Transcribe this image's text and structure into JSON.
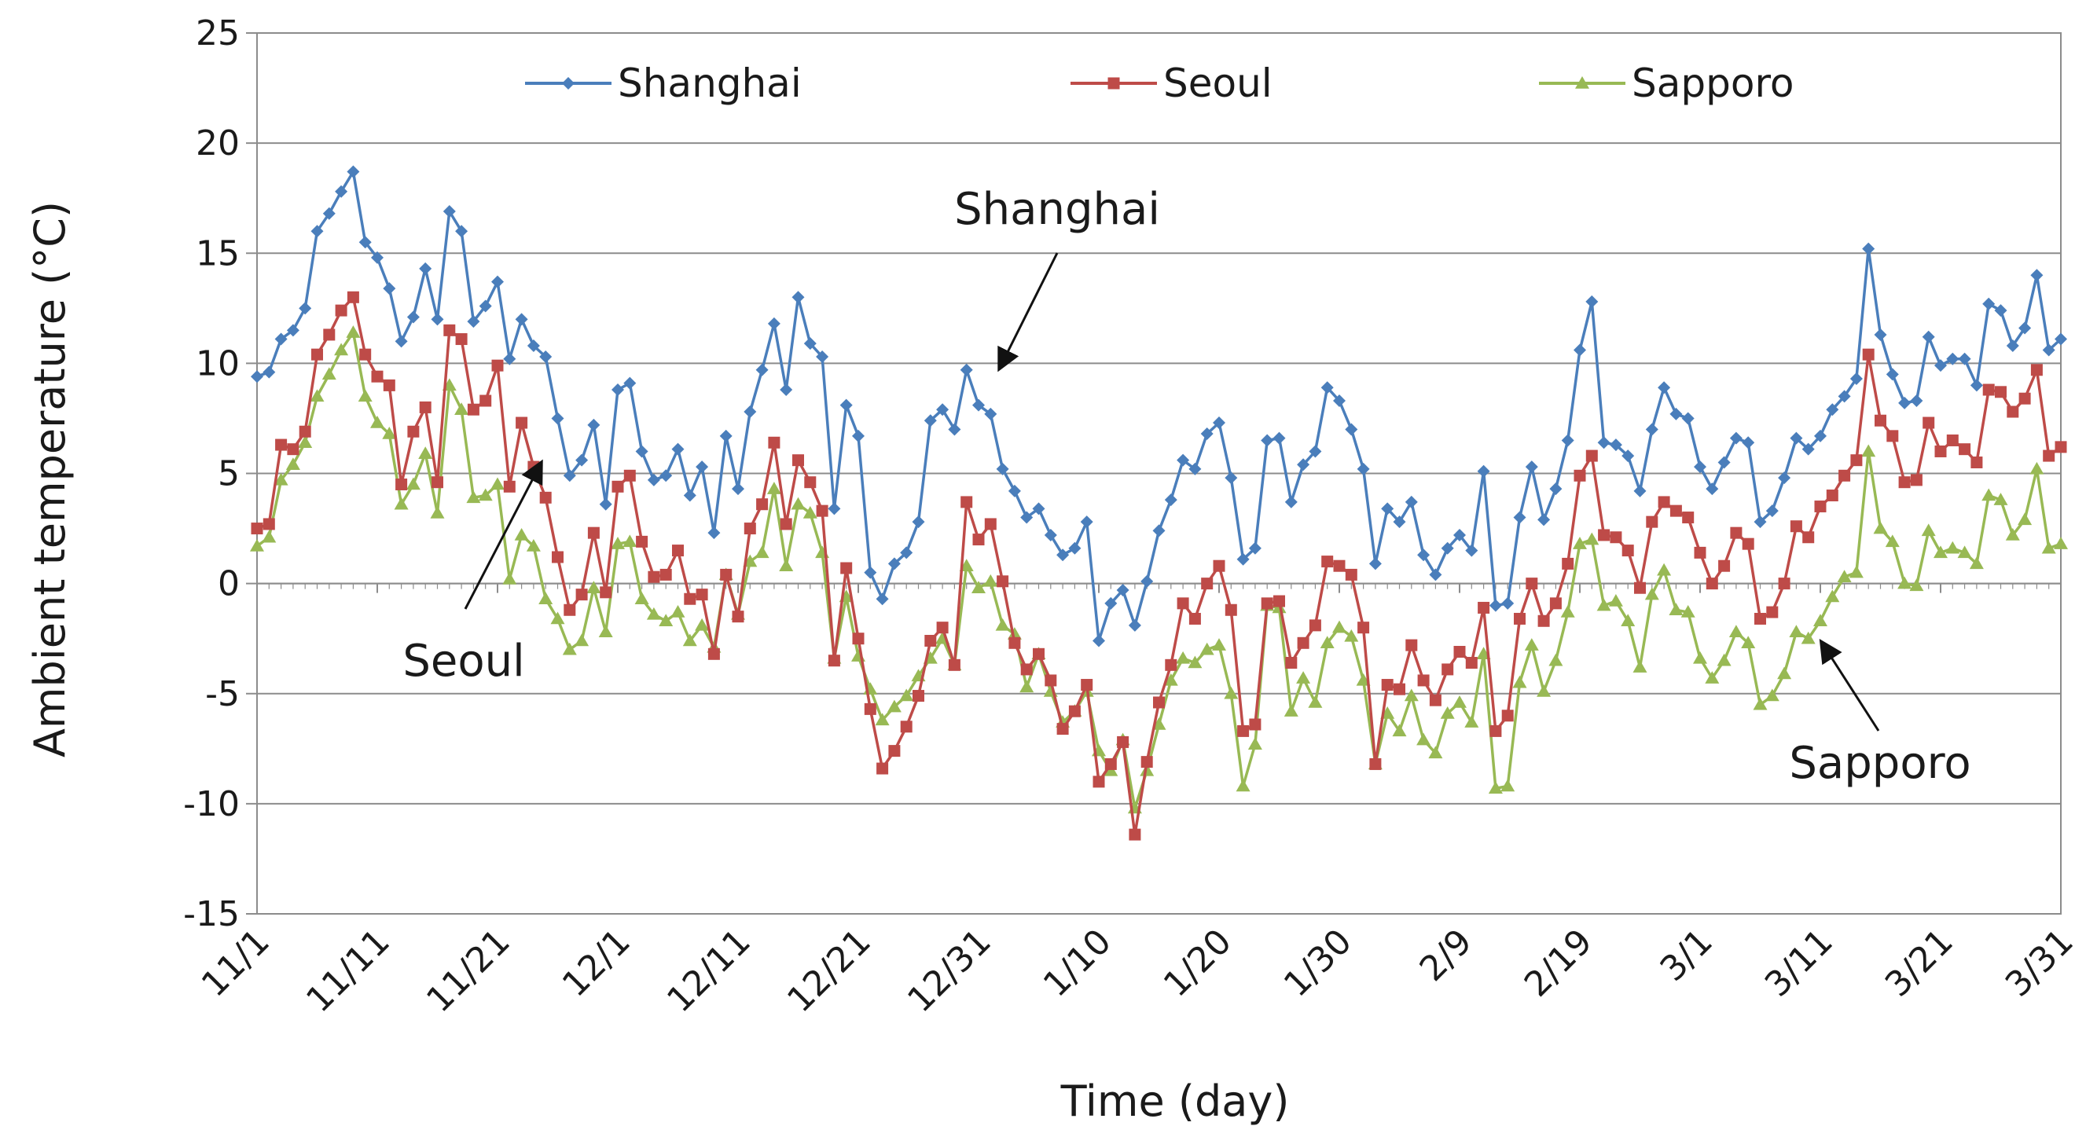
{
  "chart_data": {
    "type": "line",
    "title": "",
    "xlabel": "Time (day)",
    "ylabel": "Ambient temperature (°C)",
    "ylim": [
      -15,
      25
    ],
    "y_ticks": [
      -15,
      -10,
      -5,
      0,
      5,
      10,
      15,
      20,
      25
    ],
    "x_tick_labels": [
      "11/1",
      "11/11",
      "11/21",
      "12/1",
      "12/11",
      "12/21",
      "12/31",
      "1/10",
      "1/20",
      "1/30",
      "2/9",
      "2/19",
      "3/1",
      "3/11",
      "3/21",
      "3/31"
    ],
    "x_count": 151,
    "grid": "horizontal",
    "legend_position": "top",
    "series": [
      {
        "name": "Shanghai",
        "color": "#4a7ebb",
        "marker": "diamond",
        "values": [
          9.4,
          9.6,
          11.1,
          11.5,
          12.5,
          16.0,
          16.8,
          17.8,
          18.7,
          15.5,
          14.8,
          13.4,
          11.0,
          12.1,
          14.3,
          12.0,
          16.9,
          16.0,
          11.9,
          12.6,
          13.7,
          10.2,
          12.0,
          10.8,
          10.3,
          7.5,
          4.9,
          5.6,
          7.2,
          3.6,
          8.8,
          9.1,
          6.0,
          4.7,
          4.9,
          6.1,
          4.0,
          5.3,
          2.3,
          6.7,
          4.3,
          7.8,
          9.7,
          11.8,
          8.8,
          13.0,
          10.9,
          10.3,
          3.4,
          8.1,
          6.7,
          0.5,
          -0.7,
          0.9,
          1.4,
          2.8,
          7.4,
          7.9,
          7.0,
          9.7,
          8.1,
          7.7,
          5.2,
          4.2,
          3.0,
          3.4,
          2.2,
          1.3,
          1.6,
          2.8,
          -2.6,
          -0.9,
          -0.3,
          -1.9,
          0.1,
          2.4,
          3.8,
          5.6,
          5.2,
          6.8,
          7.3,
          4.8,
          1.1,
          1.6,
          6.5,
          6.6,
          3.7,
          5.4,
          6.0,
          8.9,
          8.3,
          7.0,
          5.2,
          0.9,
          3.4,
          2.8,
          3.7,
          1.3,
          0.4,
          1.6,
          2.2,
          1.5,
          5.1,
          -1.0,
          -0.9,
          3.0,
          5.3,
          2.9,
          4.3,
          6.5,
          10.6,
          12.8,
          6.4,
          6.3,
          5.8,
          4.2,
          7.0,
          8.9,
          7.7,
          7.5,
          5.3,
          4.3,
          5.5,
          6.6,
          6.4,
          2.8,
          3.3,
          4.8,
          6.6,
          6.1,
          6.7,
          7.9,
          8.5,
          9.3,
          15.2,
          11.3,
          9.5,
          8.2,
          8.3,
          11.2,
          9.9,
          10.2,
          10.2,
          9.0,
          12.7,
          12.4,
          10.8,
          11.6,
          14.0,
          10.6,
          11.1
        ]
      },
      {
        "name": "Seoul",
        "color": "#be4b48",
        "marker": "square",
        "values": [
          2.5,
          2.7,
          6.3,
          6.1,
          6.9,
          10.4,
          11.3,
          12.4,
          13.0,
          10.4,
          9.4,
          9.0,
          4.5,
          6.9,
          8.0,
          4.6,
          11.5,
          11.1,
          7.9,
          8.3,
          9.9,
          4.4,
          7.3,
          5.3,
          3.9,
          1.2,
          -1.2,
          -0.5,
          2.3,
          -0.4,
          4.4,
          4.9,
          1.9,
          0.3,
          0.4,
          1.5,
          -0.7,
          -0.5,
          -3.2,
          0.4,
          -1.5,
          2.5,
          3.6,
          6.4,
          2.7,
          5.6,
          4.6,
          3.3,
          -3.5,
          0.7,
          -2.5,
          -5.7,
          -8.4,
          -7.6,
          -6.5,
          -5.1,
          -2.6,
          -2.0,
          -3.7,
          3.7,
          2.0,
          2.7,
          0.1,
          -2.7,
          -3.9,
          -3.2,
          -4.4,
          -6.6,
          -5.8,
          -4.6,
          -9.0,
          -8.2,
          -7.2,
          -11.4,
          -8.1,
          -5.4,
          -3.7,
          -0.9,
          -1.6,
          0.0,
          0.8,
          -1.2,
          -6.7,
          -6.4,
          -0.9,
          -0.8,
          -3.6,
          -2.7,
          -1.9,
          1.0,
          0.8,
          0.4,
          -2.0,
          -8.2,
          -4.6,
          -4.8,
          -2.8,
          -4.4,
          -5.3,
          -3.9,
          -3.1,
          -3.6,
          -1.1,
          -6.7,
          -6.0,
          -1.6,
          0.0,
          -1.7,
          -0.9,
          0.9,
          4.9,
          5.8,
          2.2,
          2.1,
          1.5,
          -0.2,
          2.8,
          3.7,
          3.3,
          3.0,
          1.4,
          0.0,
          0.8,
          2.3,
          1.8,
          -1.6,
          -1.3,
          0.0,
          2.6,
          2.1,
          3.5,
          4.0,
          4.9,
          5.6,
          10.4,
          7.4,
          6.7,
          4.6,
          4.7,
          7.3,
          6.0,
          6.5,
          6.1,
          5.5,
          8.8,
          8.7,
          7.8,
          8.4,
          9.7,
          5.8,
          6.2
        ]
      },
      {
        "name": "Sapporo",
        "color": "#98b954",
        "marker": "triangle",
        "values": [
          1.7,
          2.1,
          4.7,
          5.4,
          6.4,
          8.5,
          9.5,
          10.6,
          11.4,
          8.5,
          7.3,
          6.8,
          3.6,
          4.5,
          5.9,
          3.2,
          9.0,
          7.9,
          3.9,
          4.0,
          4.5,
          0.2,
          2.2,
          1.7,
          -0.7,
          -1.6,
          -3.0,
          -2.6,
          -0.2,
          -2.2,
          1.8,
          1.9,
          -0.7,
          -1.4,
          -1.7,
          -1.3,
          -2.6,
          -1.9,
          -2.9,
          0.4,
          -1.4,
          1.0,
          1.4,
          4.3,
          0.8,
          3.6,
          3.2,
          1.4,
          -3.4,
          -0.6,
          -3.3,
          -4.8,
          -6.2,
          -5.6,
          -5.1,
          -4.2,
          -3.4,
          -2.5,
          -3.7,
          0.8,
          -0.2,
          0.1,
          -1.9,
          -2.3,
          -4.7,
          -3.2,
          -4.9,
          -6.3,
          -5.8,
          -4.9,
          -7.6,
          -8.5,
          -7.1,
          -10.2,
          -8.5,
          -6.4,
          -4.4,
          -3.4,
          -3.6,
          -3.0,
          -2.8,
          -5.0,
          -9.2,
          -7.3,
          -1.0,
          -1.1,
          -5.8,
          -4.3,
          -5.4,
          -2.7,
          -2.0,
          -2.4,
          -4.4,
          -8.2,
          -5.9,
          -6.7,
          -5.1,
          -7.1,
          -7.7,
          -5.9,
          -5.4,
          -6.3,
          -3.2,
          -9.3,
          -9.2,
          -4.5,
          -2.8,
          -4.9,
          -3.5,
          -1.3,
          1.8,
          2.0,
          -1.0,
          -0.8,
          -1.7,
          -3.8,
          -0.5,
          0.6,
          -1.2,
          -1.3,
          -3.4,
          -4.3,
          -3.5,
          -2.2,
          -2.7,
          -5.5,
          -5.1,
          -4.1,
          -2.2,
          -2.5,
          -1.7,
          -0.6,
          0.3,
          0.5,
          6.0,
          2.5,
          1.9,
          0.0,
          -0.1,
          2.4,
          1.4,
          1.6,
          1.4,
          0.9,
          4.0,
          3.8,
          2.2,
          2.9,
          5.2,
          1.6,
          1.8
        ]
      }
    ],
    "annotations": [
      {
        "text": "Shanghai"
      },
      {
        "text": "Seoul"
      },
      {
        "text": "Sapporo"
      }
    ]
  }
}
